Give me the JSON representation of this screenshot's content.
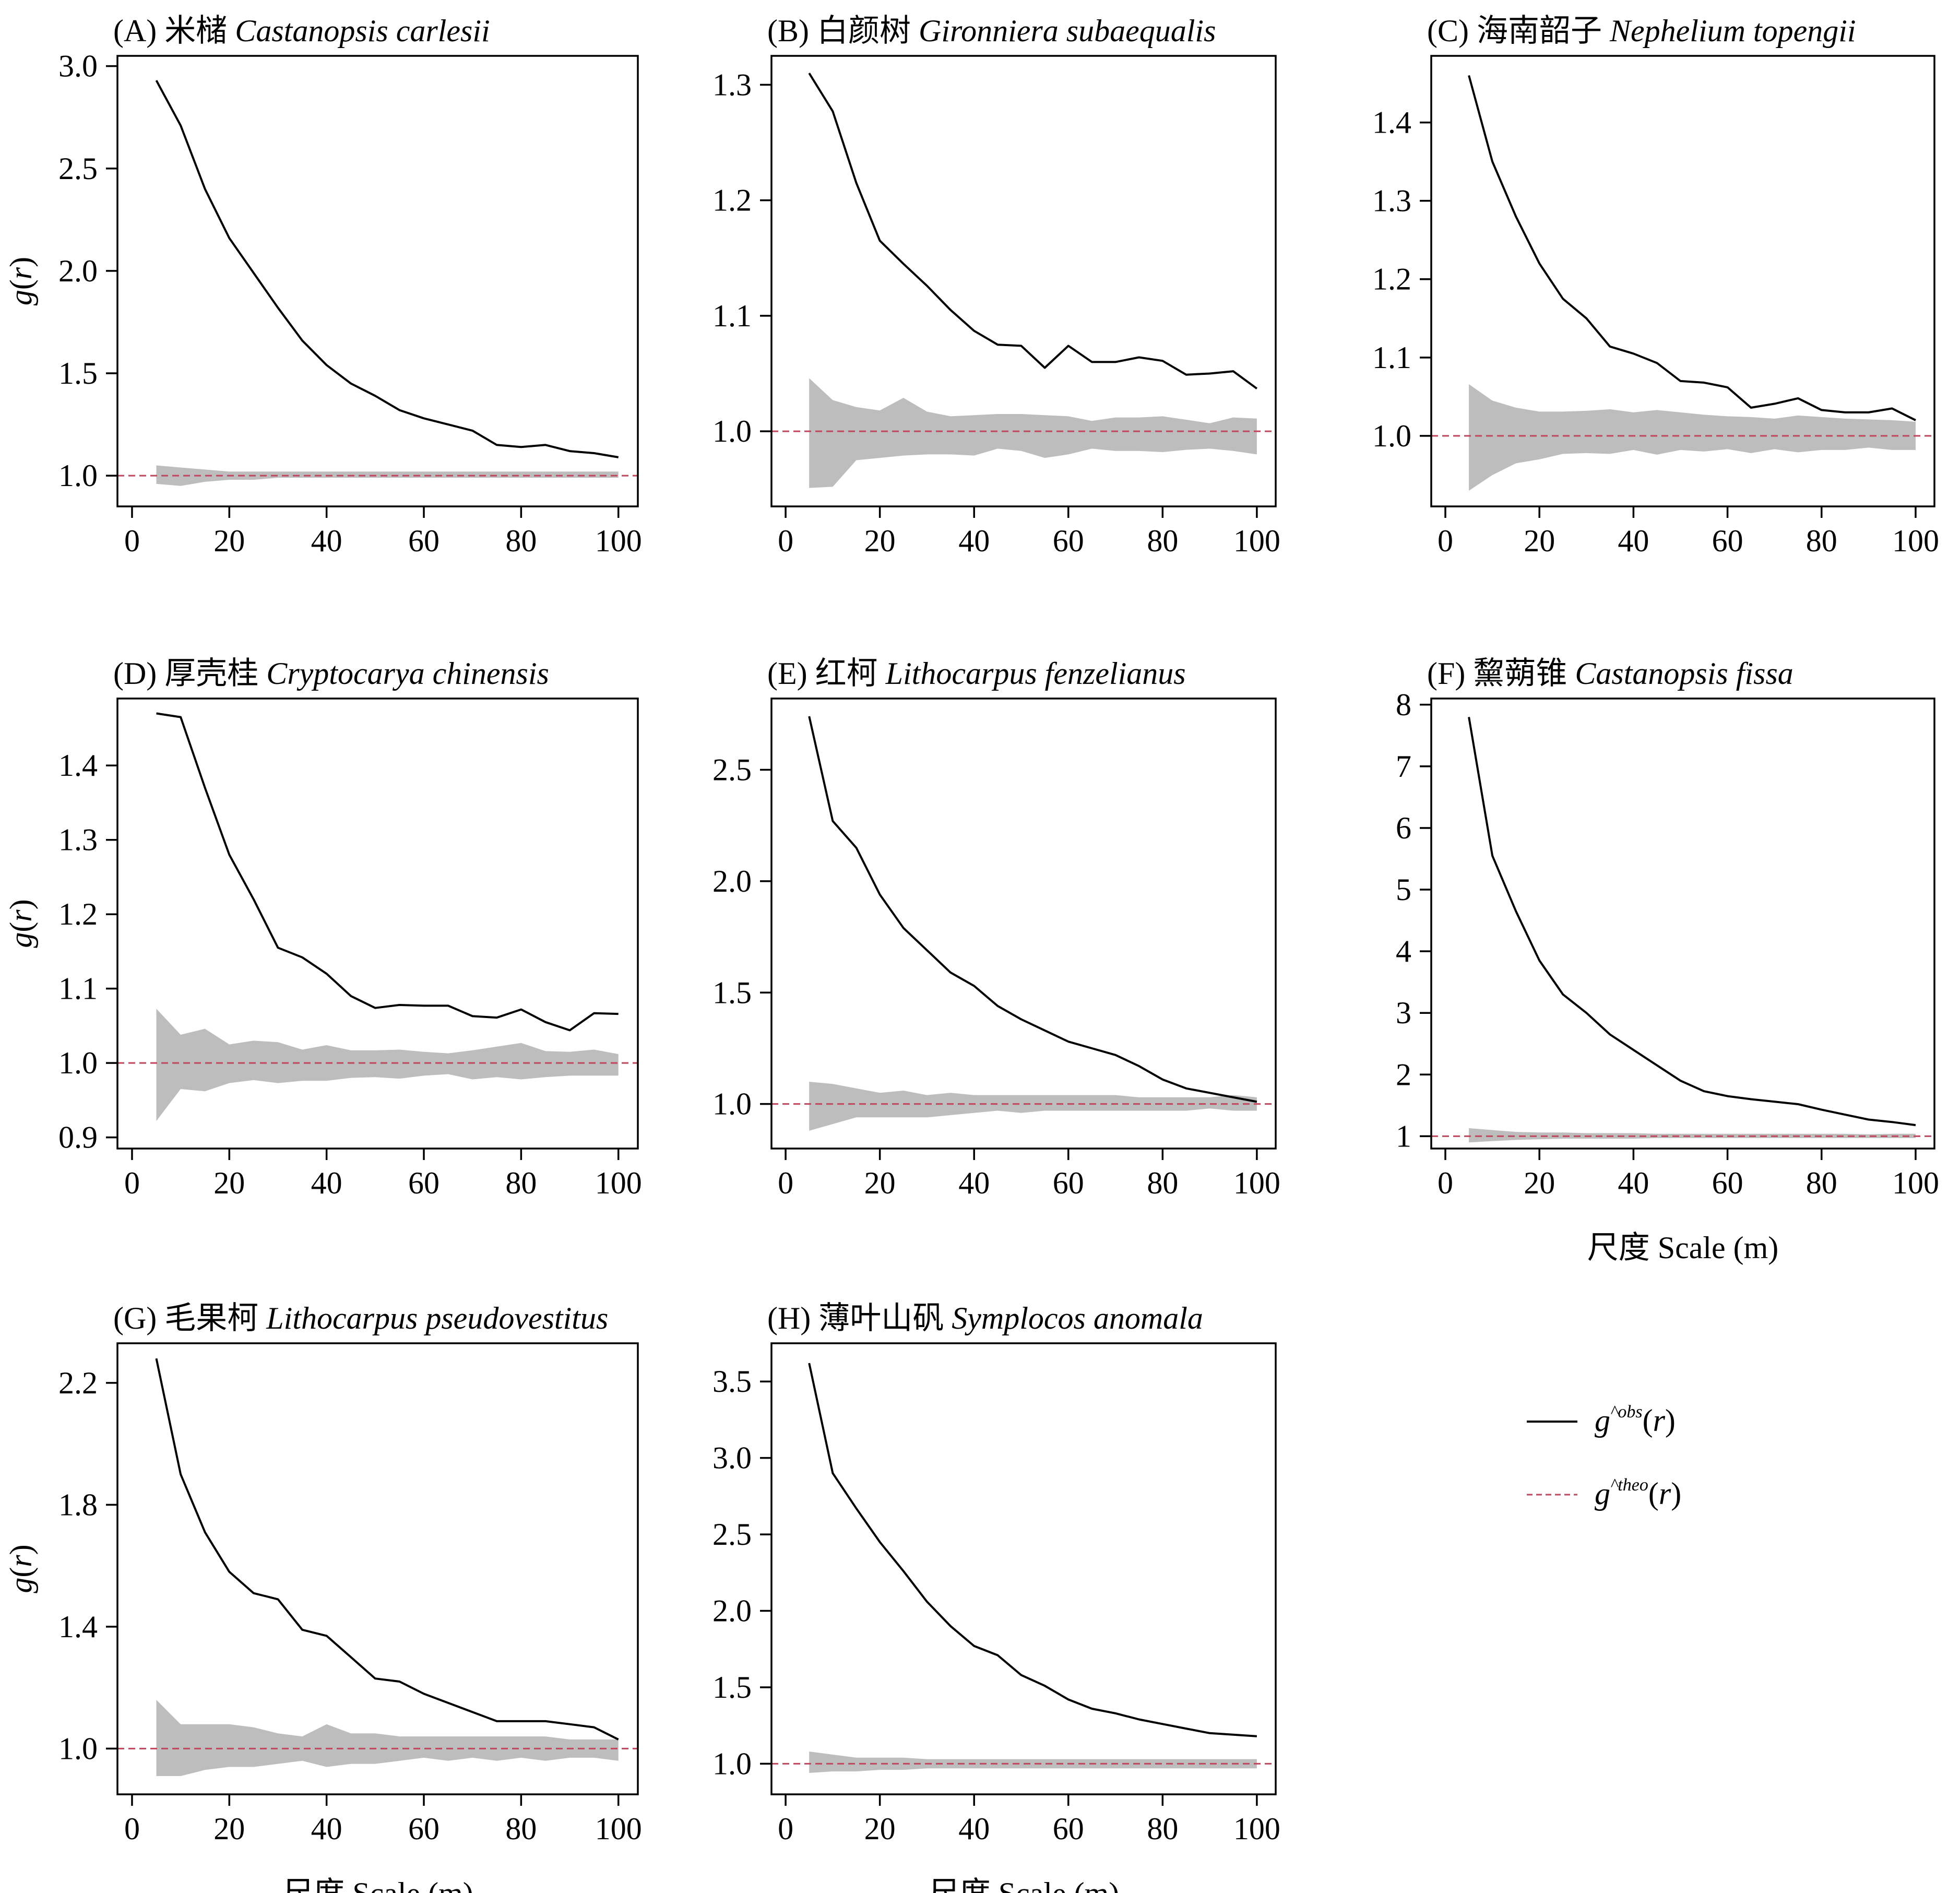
{
  "figure": {
    "colors": {
      "observed": "#000000",
      "theoretical": "#c0475e",
      "envelope": "#bdbdbd"
    },
    "legend": {
      "observed": {
        "base": "g",
        "sup": "^obs",
        "arg": "r"
      },
      "theoretical": {
        "base": "g",
        "sup": "^theo",
        "arg": "r"
      }
    },
    "ylabel": {
      "base": "g",
      "arg": "r"
    },
    "xlabel": "尺度 Scale (m)"
  },
  "chart_data": [
    {
      "type": "line",
      "title_prefix": "(A) 米槠 ",
      "title_species": "Castanopsis carlesii",
      "xlim": [
        -3,
        104
      ],
      "ylim": [
        0.85,
        3.05
      ],
      "xticks": [
        0,
        20,
        40,
        60,
        80,
        100
      ],
      "yticks": [
        "1.0",
        "1.5",
        "2.0",
        "2.5",
        "3.0"
      ],
      "show_ylabel": true,
      "show_xlabel": false,
      "x": [
        5,
        10,
        15,
        20,
        25,
        30,
        35,
        40,
        45,
        50,
        55,
        60,
        65,
        70,
        75,
        80,
        85,
        90,
        95,
        100
      ],
      "series": [
        {
          "name": "g^obs(r)",
          "values": [
            2.93,
            2.71,
            2.4,
            2.16,
            1.99,
            1.82,
            1.66,
            1.54,
            1.45,
            1.39,
            1.32,
            1.28,
            1.25,
            1.22,
            1.15,
            1.14,
            1.15,
            1.12,
            1.11,
            1.09
          ]
        },
        {
          "name": "g^theo(r)",
          "values": [
            1.0,
            1.0,
            1.0,
            1.0,
            1.0,
            1.0,
            1.0,
            1.0,
            1.0,
            1.0,
            1.0,
            1.0,
            1.0,
            1.0,
            1.0,
            1.0,
            1.0,
            1.0,
            1.0,
            1.0
          ]
        }
      ],
      "envelope": {
        "upper": [
          1.05,
          1.04,
          1.03,
          1.02,
          1.02,
          1.02,
          1.02,
          1.02,
          1.02,
          1.02,
          1.02,
          1.02,
          1.02,
          1.02,
          1.02,
          1.02,
          1.02,
          1.02,
          1.02,
          1.02
        ],
        "lower": [
          0.96,
          0.95,
          0.97,
          0.98,
          0.98,
          0.99,
          0.99,
          0.99,
          0.99,
          0.99,
          0.99,
          0.99,
          0.99,
          0.99,
          0.99,
          0.99,
          0.99,
          0.99,
          0.99,
          0.99
        ]
      }
    },
    {
      "type": "line",
      "title_prefix": "(B) 白颜树 ",
      "title_species": "Gironniera subaequalis",
      "xlim": [
        -3,
        104
      ],
      "ylim": [
        0.935,
        1.325
      ],
      "xticks": [
        0,
        20,
        40,
        60,
        80,
        100
      ],
      "yticks": [
        "1.0",
        "1.1",
        "1.2",
        "1.3"
      ],
      "show_ylabel": false,
      "show_xlabel": false,
      "x": [
        5,
        10,
        15,
        20,
        25,
        30,
        35,
        40,
        45,
        50,
        55,
        60,
        65,
        70,
        75,
        80,
        85,
        90,
        95,
        100
      ],
      "series": [
        {
          "name": "g^obs(r)",
          "values": [
            1.31,
            1.277,
            1.215,
            1.165,
            1.145,
            1.126,
            1.105,
            1.087,
            1.075,
            1.074,
            1.055,
            1.074,
            1.06,
            1.06,
            1.064,
            1.061,
            1.049,
            1.05,
            1.052,
            1.037
          ]
        },
        {
          "name": "g^theo(r)",
          "values": [
            1.0,
            1.0,
            1.0,
            1.0,
            1.0,
            1.0,
            1.0,
            1.0,
            1.0,
            1.0,
            1.0,
            1.0,
            1.0,
            1.0,
            1.0,
            1.0,
            1.0,
            1.0,
            1.0,
            1.0
          ]
        }
      ],
      "envelope": {
        "upper": [
          1.046,
          1.027,
          1.021,
          1.018,
          1.029,
          1.017,
          1.013,
          1.014,
          1.015,
          1.015,
          1.014,
          1.013,
          1.009,
          1.012,
          1.012,
          1.013,
          1.01,
          1.007,
          1.012,
          1.011
        ],
        "lower": [
          0.951,
          0.952,
          0.975,
          0.977,
          0.979,
          0.98,
          0.98,
          0.979,
          0.985,
          0.983,
          0.977,
          0.98,
          0.985,
          0.983,
          0.983,
          0.982,
          0.984,
          0.985,
          0.983,
          0.98
        ]
      }
    },
    {
      "type": "line",
      "title_prefix": "(C) 海南韶子 ",
      "title_species": "Nephelium topengii",
      "xlim": [
        -3,
        104
      ],
      "ylim": [
        0.91,
        1.485
      ],
      "xticks": [
        0,
        20,
        40,
        60,
        80,
        100
      ],
      "yticks": [
        "1.0",
        "1.1",
        "1.2",
        "1.3",
        "1.4"
      ],
      "show_ylabel": false,
      "show_xlabel": false,
      "x": [
        5,
        10,
        15,
        20,
        25,
        30,
        35,
        40,
        45,
        50,
        55,
        60,
        65,
        70,
        75,
        80,
        85,
        90,
        95,
        100
      ],
      "series": [
        {
          "name": "g^obs(r)",
          "values": [
            1.46,
            1.35,
            1.28,
            1.22,
            1.175,
            1.15,
            1.114,
            1.105,
            1.093,
            1.07,
            1.068,
            1.062,
            1.036,
            1.041,
            1.048,
            1.033,
            1.03,
            1.03,
            1.035,
            1.02
          ]
        },
        {
          "name": "g^theo(r)",
          "values": [
            1.0,
            1.0,
            1.0,
            1.0,
            1.0,
            1.0,
            1.0,
            1.0,
            1.0,
            1.0,
            1.0,
            1.0,
            1.0,
            1.0,
            1.0,
            1.0,
            1.0,
            1.0,
            1.0,
            1.0
          ]
        }
      ],
      "envelope": {
        "upper": [
          1.066,
          1.045,
          1.036,
          1.031,
          1.031,
          1.032,
          1.034,
          1.03,
          1.033,
          1.03,
          1.027,
          1.025,
          1.024,
          1.022,
          1.026,
          1.024,
          1.022,
          1.021,
          1.02,
          1.018
        ],
        "lower": [
          0.93,
          0.95,
          0.965,
          0.97,
          0.977,
          0.978,
          0.977,
          0.982,
          0.976,
          0.982,
          0.98,
          0.983,
          0.978,
          0.983,
          0.979,
          0.982,
          0.982,
          0.985,
          0.982,
          0.982
        ]
      }
    },
    {
      "type": "line",
      "title_prefix": "(D) 厚壳桂 ",
      "title_species": "Cryptocarya chinensis",
      "xlim": [
        -3,
        104
      ],
      "ylim": [
        0.885,
        1.49
      ],
      "xticks": [
        0,
        20,
        40,
        60,
        80,
        100
      ],
      "yticks": [
        "0.9",
        "1.0",
        "1.1",
        "1.2",
        "1.3",
        "1.4"
      ],
      "show_ylabel": true,
      "show_xlabel": false,
      "x": [
        5,
        10,
        15,
        20,
        25,
        30,
        35,
        40,
        45,
        50,
        55,
        60,
        65,
        70,
        75,
        80,
        85,
        90,
        95,
        100
      ],
      "series": [
        {
          "name": "g^obs(r)",
          "values": [
            1.47,
            1.465,
            1.37,
            1.28,
            1.22,
            1.155,
            1.142,
            1.12,
            1.09,
            1.074,
            1.078,
            1.077,
            1.077,
            1.063,
            1.061,
            1.072,
            1.055,
            1.044,
            1.067,
            1.066
          ]
        },
        {
          "name": "g^theo(r)",
          "values": [
            1.0,
            1.0,
            1.0,
            1.0,
            1.0,
            1.0,
            1.0,
            1.0,
            1.0,
            1.0,
            1.0,
            1.0,
            1.0,
            1.0,
            1.0,
            1.0,
            1.0,
            1.0,
            1.0,
            1.0
          ]
        }
      ],
      "envelope": {
        "upper": [
          1.073,
          1.038,
          1.046,
          1.025,
          1.03,
          1.028,
          1.018,
          1.024,
          1.017,
          1.017,
          1.018,
          1.015,
          1.013,
          1.017,
          1.022,
          1.027,
          1.016,
          1.015,
          1.018,
          1.012
        ],
        "lower": [
          0.922,
          0.965,
          0.962,
          0.973,
          0.977,
          0.973,
          0.976,
          0.976,
          0.98,
          0.981,
          0.979,
          0.983,
          0.985,
          0.978,
          0.981,
          0.978,
          0.981,
          0.983,
          0.983,
          0.983
        ]
      }
    },
    {
      "type": "line",
      "title_prefix": "(E) 红柯 ",
      "title_species": "Lithocarpus fenzelianus",
      "xlim": [
        -3,
        104
      ],
      "ylim": [
        0.8,
        2.82
      ],
      "xticks": [
        0,
        20,
        40,
        60,
        80,
        100
      ],
      "yticks": [
        "1.0",
        "1.5",
        "2.0",
        "2.5"
      ],
      "show_ylabel": false,
      "show_xlabel": false,
      "x": [
        5,
        10,
        15,
        20,
        25,
        30,
        35,
        40,
        45,
        50,
        55,
        60,
        65,
        70,
        75,
        80,
        85,
        90,
        95,
        100
      ],
      "series": [
        {
          "name": "g^obs(r)",
          "values": [
            2.74,
            2.27,
            2.15,
            1.94,
            1.79,
            1.69,
            1.59,
            1.53,
            1.44,
            1.38,
            1.33,
            1.28,
            1.25,
            1.22,
            1.17,
            1.11,
            1.07,
            1.05,
            1.03,
            1.01
          ]
        },
        {
          "name": "g^theo(r)",
          "values": [
            1.0,
            1.0,
            1.0,
            1.0,
            1.0,
            1.0,
            1.0,
            1.0,
            1.0,
            1.0,
            1.0,
            1.0,
            1.0,
            1.0,
            1.0,
            1.0,
            1.0,
            1.0,
            1.0,
            1.0
          ]
        }
      ],
      "envelope": {
        "upper": [
          1.1,
          1.09,
          1.07,
          1.05,
          1.06,
          1.04,
          1.05,
          1.04,
          1.04,
          1.04,
          1.04,
          1.04,
          1.04,
          1.04,
          1.03,
          1.03,
          1.03,
          1.03,
          1.04,
          1.03
        ],
        "lower": [
          0.88,
          0.91,
          0.94,
          0.94,
          0.94,
          0.94,
          0.95,
          0.96,
          0.97,
          0.96,
          0.97,
          0.97,
          0.97,
          0.97,
          0.97,
          0.97,
          0.97,
          0.98,
          0.97,
          0.97
        ]
      }
    },
    {
      "type": "line",
      "title_prefix": "(F) 黧蒴锥 ",
      "title_species": "Castanopsis fissa",
      "xlim": [
        -3,
        104
      ],
      "ylim": [
        0.8,
        8.1
      ],
      "xticks": [
        0,
        20,
        40,
        60,
        80,
        100
      ],
      "yticks": [
        "1",
        "2",
        "3",
        "4",
        "5",
        "6",
        "7",
        "8"
      ],
      "show_ylabel": false,
      "show_xlabel": true,
      "x": [
        5,
        10,
        15,
        20,
        25,
        30,
        35,
        40,
        45,
        50,
        55,
        60,
        65,
        70,
        75,
        80,
        85,
        90,
        95,
        100
      ],
      "series": [
        {
          "name": "g^obs(r)",
          "values": [
            7.8,
            5.55,
            4.65,
            3.85,
            3.3,
            3.0,
            2.65,
            2.4,
            2.15,
            1.9,
            1.73,
            1.65,
            1.6,
            1.56,
            1.52,
            1.43,
            1.35,
            1.27,
            1.23,
            1.18
          ]
        },
        {
          "name": "g^theo(r)",
          "values": [
            1.0,
            1.0,
            1.0,
            1.0,
            1.0,
            1.0,
            1.0,
            1.0,
            1.0,
            1.0,
            1.0,
            1.0,
            1.0,
            1.0,
            1.0,
            1.0,
            1.0,
            1.0,
            1.0,
            1.0
          ]
        }
      ],
      "envelope": {
        "upper": [
          1.13,
          1.1,
          1.07,
          1.06,
          1.06,
          1.05,
          1.05,
          1.05,
          1.04,
          1.04,
          1.04,
          1.04,
          1.04,
          1.04,
          1.04,
          1.04,
          1.04,
          1.03,
          1.04,
          1.04
        ],
        "lower": [
          0.9,
          0.92,
          0.94,
          0.95,
          0.96,
          0.96,
          0.96,
          0.96,
          0.97,
          0.97,
          0.97,
          0.97,
          0.97,
          0.97,
          0.97,
          0.97,
          0.97,
          0.97,
          0.97,
          0.97
        ]
      }
    },
    {
      "type": "line",
      "title_prefix": "(G) 毛果柯 ",
      "title_species": "Lithocarpus pseudovestitus",
      "xlim": [
        -3,
        104
      ],
      "ylim": [
        0.85,
        2.33
      ],
      "xticks": [
        0,
        20,
        40,
        60,
        80,
        100
      ],
      "yticks": [
        "1.0",
        "1.4",
        "1.8",
        "2.2"
      ],
      "show_ylabel": true,
      "show_xlabel": true,
      "x": [
        5,
        10,
        15,
        20,
        25,
        30,
        35,
        40,
        45,
        50,
        55,
        60,
        65,
        70,
        75,
        80,
        85,
        90,
        95,
        100
      ],
      "series": [
        {
          "name": "g^obs(r)",
          "values": [
            2.28,
            1.9,
            1.71,
            1.58,
            1.51,
            1.49,
            1.39,
            1.37,
            1.3,
            1.23,
            1.22,
            1.18,
            1.15,
            1.12,
            1.09,
            1.09,
            1.09,
            1.08,
            1.07,
            1.03
          ]
        },
        {
          "name": "g^theo(r)",
          "values": [
            1.0,
            1.0,
            1.0,
            1.0,
            1.0,
            1.0,
            1.0,
            1.0,
            1.0,
            1.0,
            1.0,
            1.0,
            1.0,
            1.0,
            1.0,
            1.0,
            1.0,
            1.0,
            1.0,
            1.0
          ]
        }
      ],
      "envelope": {
        "upper": [
          1.16,
          1.08,
          1.08,
          1.08,
          1.07,
          1.05,
          1.04,
          1.08,
          1.05,
          1.05,
          1.04,
          1.04,
          1.04,
          1.04,
          1.04,
          1.04,
          1.04,
          1.03,
          1.03,
          1.03
        ],
        "lower": [
          0.91,
          0.91,
          0.93,
          0.94,
          0.94,
          0.95,
          0.96,
          0.94,
          0.95,
          0.95,
          0.96,
          0.97,
          0.96,
          0.97,
          0.96,
          0.97,
          0.96,
          0.97,
          0.97,
          0.96
        ]
      }
    },
    {
      "type": "line",
      "title_prefix": "(H) 薄叶山矾 ",
      "title_species": "Symplocos anomala",
      "xlim": [
        -3,
        104
      ],
      "ylim": [
        0.8,
        3.75
      ],
      "xticks": [
        0,
        20,
        40,
        60,
        80,
        100
      ],
      "yticks": [
        "1.0",
        "1.5",
        "2.0",
        "2.5",
        "3.0",
        "3.5"
      ],
      "show_ylabel": false,
      "show_xlabel": true,
      "x": [
        5,
        10,
        15,
        20,
        25,
        30,
        35,
        40,
        45,
        50,
        55,
        60,
        65,
        70,
        75,
        80,
        85,
        90,
        95,
        100
      ],
      "series": [
        {
          "name": "g^obs(r)",
          "values": [
            3.62,
            2.9,
            2.67,
            2.45,
            2.26,
            2.06,
            1.9,
            1.77,
            1.71,
            1.58,
            1.51,
            1.42,
            1.36,
            1.33,
            1.29,
            1.26,
            1.23,
            1.2,
            1.19,
            1.18
          ]
        },
        {
          "name": "g^theo(r)",
          "values": [
            1.0,
            1.0,
            1.0,
            1.0,
            1.0,
            1.0,
            1.0,
            1.0,
            1.0,
            1.0,
            1.0,
            1.0,
            1.0,
            1.0,
            1.0,
            1.0,
            1.0,
            1.0,
            1.0,
            1.0
          ]
        }
      ],
      "envelope": {
        "upper": [
          1.08,
          1.06,
          1.04,
          1.04,
          1.04,
          1.03,
          1.03,
          1.03,
          1.03,
          1.03,
          1.03,
          1.03,
          1.03,
          1.03,
          1.03,
          1.03,
          1.03,
          1.03,
          1.03,
          1.03
        ],
        "lower": [
          0.94,
          0.95,
          0.95,
          0.96,
          0.96,
          0.97,
          0.97,
          0.97,
          0.97,
          0.97,
          0.97,
          0.97,
          0.97,
          0.97,
          0.97,
          0.97,
          0.97,
          0.97,
          0.97,
          0.97
        ]
      }
    }
  ]
}
